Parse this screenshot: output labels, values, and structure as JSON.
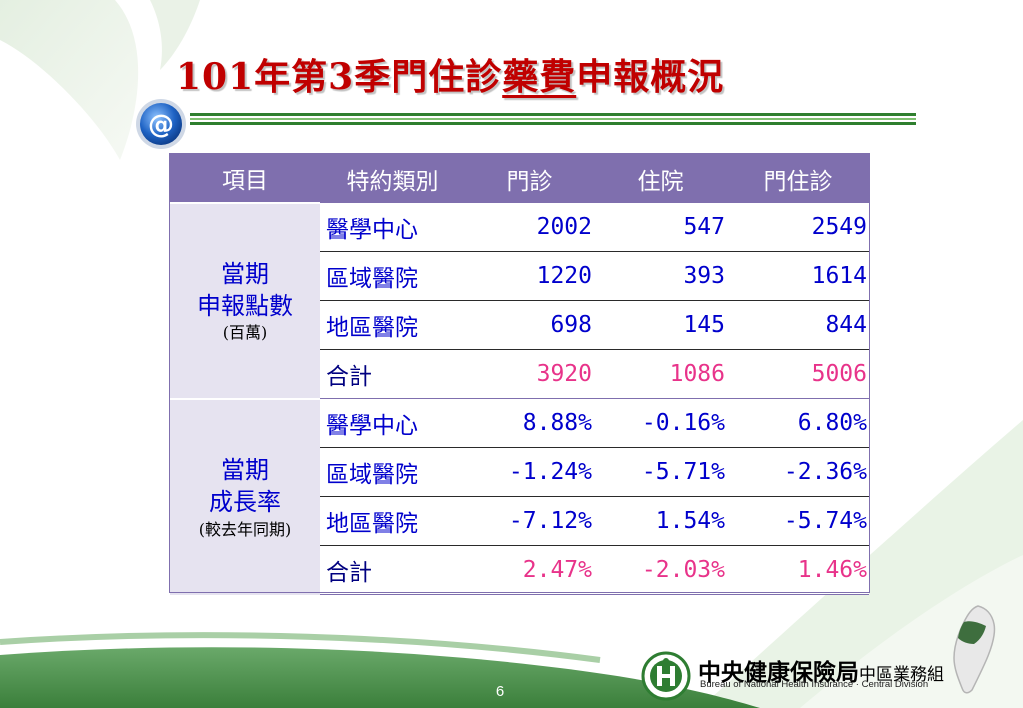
{
  "title": {
    "part1": "101年第3季門住診",
    "underlined": "藥費",
    "part2": "申報概況"
  },
  "table": {
    "headers": [
      "項目",
      "特約類別",
      "門診",
      "住院",
      "門住診"
    ],
    "group1": {
      "line1": "當期",
      "line2": "申報點數",
      "line3": "(百萬)"
    },
    "group2": {
      "line1": "當期",
      "line2": "成長率",
      "line3": "(較去年同期)"
    },
    "rows_points": [
      {
        "category": "醫學中心",
        "outpatient": "2002",
        "inpatient": "547",
        "total": "2549"
      },
      {
        "category": "區域醫院",
        "outpatient": "1220",
        "inpatient": "393",
        "total": "1614"
      },
      {
        "category": "地區醫院",
        "outpatient": "698",
        "inpatient": "145",
        "total": "844"
      },
      {
        "category": "合計",
        "outpatient": "3920",
        "inpatient": "1086",
        "total": "5006"
      }
    ],
    "rows_growth": [
      {
        "category": "醫學中心",
        "outpatient": "8.88%",
        "inpatient": "-0.16%",
        "total": "6.80%"
      },
      {
        "category": "區域醫院",
        "outpatient": "-1.24%",
        "inpatient": "-5.71%",
        "total": "-2.36%"
      },
      {
        "category": "地區醫院",
        "outpatient": "-7.12%",
        "inpatient": "1.54%",
        "total": "-5.74%"
      },
      {
        "category": "合計",
        "outpatient": "2.47%",
        "inpatient": "-2.03%",
        "total": "1.46%"
      }
    ]
  },
  "footer": {
    "page_number": "6",
    "org_name": "中央健康保險局",
    "org_division": "中區業務組",
    "org_english": "Bureau of National Health Insurance · Central Division",
    "logo_icon": "nhi-logo-icon"
  },
  "colors": {
    "title": "#c00000",
    "header_bg": "#7f6fae",
    "value_blue": "#0000cc",
    "total_pink": "#e8338a",
    "footer_green": "#3e8f3e"
  }
}
